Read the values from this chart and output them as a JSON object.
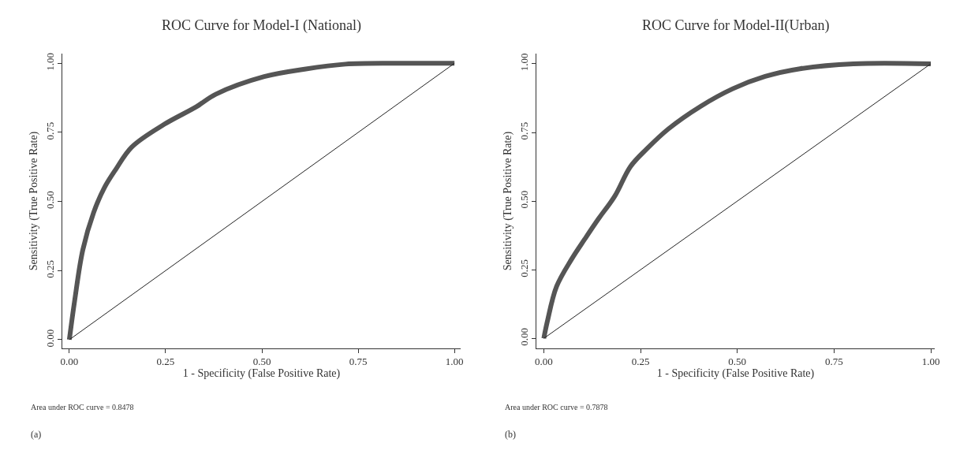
{
  "chart_data": [
    {
      "type": "line",
      "title": "ROC Curve for Model-I (National)",
      "xlabel": "1 - Specificity (False Positive Rate)",
      "ylabel": "Sensitivity (True Positive Rate)",
      "series": [
        {
          "color": "#555555",
          "x": [
            0,
            0.014,
            0.035,
            0.063,
            0.091,
            0.12,
            0.162,
            0.246,
            0.33,
            0.38,
            0.506,
            0.611,
            0.717,
            0.857,
            1.0
          ],
          "values": [
            0,
            0.143,
            0.325,
            0.46,
            0.55,
            0.615,
            0.697,
            0.779,
            0.843,
            0.888,
            0.952,
            0.979,
            0.997,
            1.0,
            1.0
          ]
        },
        {
          "color": "#222222",
          "x": [
            0,
            1
          ],
          "values": [
            0,
            1
          ]
        }
      ],
      "xlim": [
        -0.018,
        1.016
      ],
      "ylim": [
        -0.03,
        1.034
      ],
      "xticks": [
        {
          "value": 0,
          "label": "0.00"
        },
        {
          "value": 0.25,
          "label": "0.25"
        },
        {
          "value": 0.5,
          "label": "0.50"
        },
        {
          "value": 0.75,
          "label": "0.75"
        },
        {
          "value": 1,
          "label": "1.00"
        }
      ],
      "yticks": [
        {
          "value": 0,
          "label": "0.00"
        },
        {
          "value": 0.25,
          "label": "0.25"
        },
        {
          "value": 0.5,
          "label": "0.50"
        },
        {
          "value": 0.75,
          "label": "0.75"
        },
        {
          "value": 1,
          "label": "1.00"
        }
      ],
      "marker": "none",
      "annotations": [
        "Area under ROC curve = 0.8478",
        "(a)"
      ]
    },
    {
      "type": "line",
      "title": "ROC Curve for Model-II(Urban)",
      "xlabel": "1 - Specificity (False Positive Rate)",
      "ylabel": "Sensitivity (True Positive Rate)",
      "series": [
        {
          "color": "#555555",
          "x": [
            0,
            0.009,
            0.033,
            0.072,
            0.106,
            0.141,
            0.183,
            0.224,
            0.266,
            0.322,
            0.405,
            0.488,
            0.572,
            0.662,
            0.8,
            1.0
          ],
          "values": [
            0,
            0.061,
            0.189,
            0.289,
            0.362,
            0.435,
            0.517,
            0.626,
            0.69,
            0.763,
            0.845,
            0.909,
            0.954,
            0.982,
            1.0,
            1.0
          ]
        },
        {
          "color": "#222222",
          "x": [
            0,
            1
          ],
          "values": [
            0,
            1
          ]
        }
      ],
      "xlim": [
        -0.019,
        1.01
      ],
      "ylim": [
        -0.035,
        1.036
      ],
      "xticks": [
        {
          "value": 0,
          "label": "0.00"
        },
        {
          "value": 0.25,
          "label": "0.25"
        },
        {
          "value": 0.5,
          "label": "0.50"
        },
        {
          "value": 0.75,
          "label": "0.75"
        },
        {
          "value": 1,
          "label": "1.00"
        }
      ],
      "yticks": [
        {
          "value": 0,
          "label": "0.00"
        },
        {
          "value": 0.25,
          "label": "0.25"
        },
        {
          "value": 0.5,
          "label": "0.50"
        },
        {
          "value": 0.75,
          "label": "0.75"
        },
        {
          "value": 1,
          "label": "1.00"
        }
      ],
      "marker": "none",
      "annotations": [
        "Area under ROC curve = 0.7878",
        "(b)"
      ]
    }
  ]
}
